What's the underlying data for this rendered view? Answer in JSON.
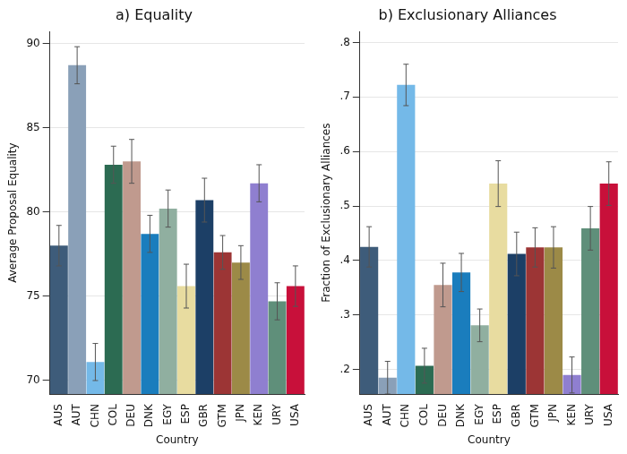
{
  "chart_data": [
    {
      "type": "bar",
      "title": "a) Equality",
      "x_label": "Country",
      "y_label": "Average Proposal Equality",
      "categories": [
        "AUS",
        "AUT",
        "CHN",
        "COL",
        "DEU",
        "DNK",
        "EGY",
        "ESP",
        "GBR",
        "GTM",
        "JPN",
        "KEN",
        "URY",
        "USA"
      ],
      "values": [
        78.0,
        88.7,
        71.1,
        82.8,
        83.0,
        78.7,
        80.2,
        75.6,
        80.7,
        77.6,
        77.0,
        81.7,
        74.7,
        75.6
      ],
      "errors": [
        1.2,
        1.1,
        1.1,
        1.1,
        1.3,
        1.1,
        1.1,
        1.3,
        1.3,
        1.0,
        1.0,
        1.1,
        1.1,
        1.2
      ],
      "colors": [
        "#3e5c7a",
        "#8aa0b8",
        "#74b9e8",
        "#2c6b52",
        "#c09a8e",
        "#1a7dbd",
        "#90afa0",
        "#e8dca0",
        "#1c3f66",
        "#9c3535",
        "#9c8a47",
        "#8f7fd0",
        "#5f8f7a",
        "#c8103a"
      ],
      "ylim": [
        69.2,
        90.7
      ],
      "yticks": [
        70,
        75,
        80,
        85,
        90
      ],
      "grid": true
    },
    {
      "type": "bar",
      "title": "b) Exclusionary Alliances",
      "x_label": "Country",
      "y_label": "Fraction of Exclusionary Alliances",
      "categories": [
        "AUS",
        "AUT",
        "CHN",
        "COL",
        "DEU",
        "DNK",
        "EGY",
        "ESP",
        "GBR",
        "GTM",
        "JPN",
        "KEN",
        "URY",
        "USA"
      ],
      "values": [
        0.425,
        0.185,
        0.722,
        0.207,
        0.355,
        0.378,
        0.281,
        0.541,
        0.412,
        0.424,
        0.424,
        0.19,
        0.459,
        0.541
      ],
      "errors": [
        0.037,
        0.03,
        0.038,
        0.032,
        0.04,
        0.035,
        0.03,
        0.042,
        0.04,
        0.036,
        0.038,
        0.033,
        0.04,
        0.04
      ],
      "colors": [
        "#3e5c7a",
        "#8aa0b8",
        "#74b9e8",
        "#2c6b52",
        "#c09a8e",
        "#1a7dbd",
        "#90afa0",
        "#e8dca0",
        "#1c3f66",
        "#9c3535",
        "#9c8a47",
        "#8f7fd0",
        "#5f8f7a",
        "#c8103a"
      ],
      "ylim": [
        0.155,
        0.82
      ],
      "yticks": [
        {
          "value": 0.2,
          "label": ".2"
        },
        {
          "value": 0.3,
          "label": ".3"
        },
        {
          "value": 0.4,
          "label": ".4"
        },
        {
          "value": 0.5,
          "label": ".5"
        },
        {
          "value": 0.6,
          "label": ".6"
        },
        {
          "value": 0.7,
          "label": ".7"
        },
        {
          "value": 0.8,
          "label": ".8"
        }
      ],
      "grid": true
    }
  ]
}
